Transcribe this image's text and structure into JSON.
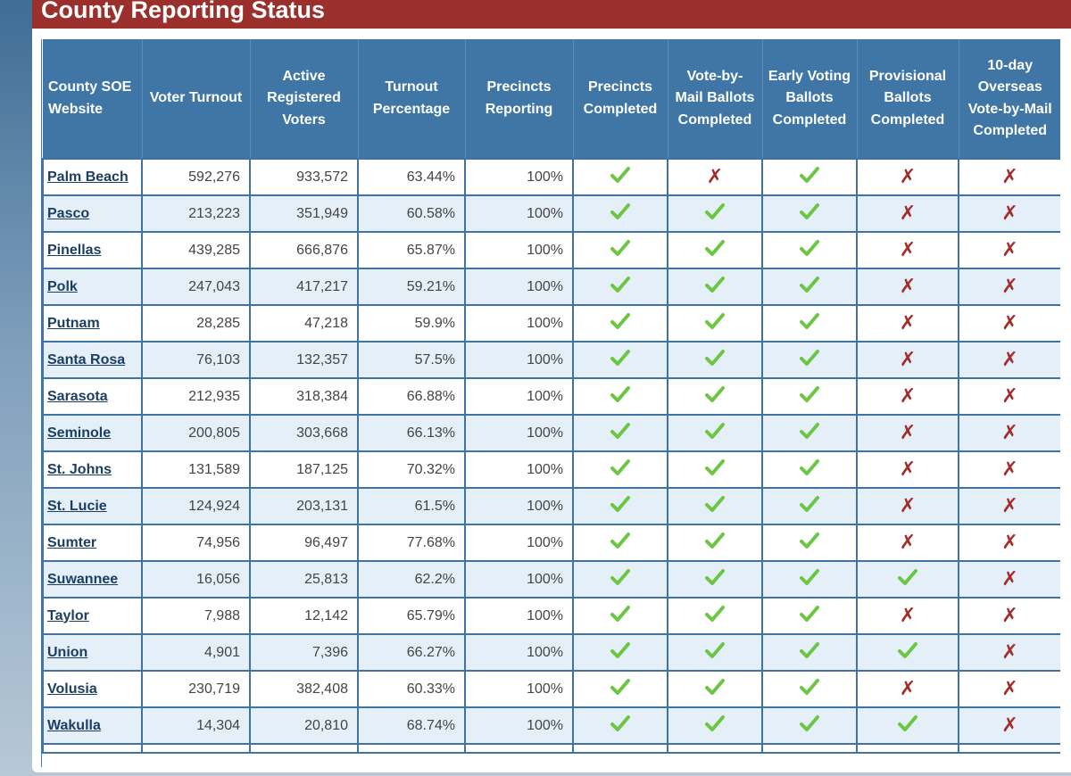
{
  "title": "County Reporting Status",
  "columns": [
    "County SOE Website",
    "Voter Turnout",
    "Active Registered Voters",
    "Turnout Percentage",
    "Precincts Reporting",
    "Precincts Completed",
    "Vote-by-Mail Ballots Completed",
    "Early Voting Ballots Completed",
    "Provisional Ballots Completed",
    "10-day Overseas Vote-by-Mail Completed"
  ],
  "colors": {
    "title_bar": "#9b2f2c",
    "header": "#3f76a6",
    "check": "#6cc644",
    "cross": "#a52a2a"
  },
  "rows": [
    {
      "county": "Palm Beach",
      "turnout": "592,276",
      "registered": "933,572",
      "pct": "63.44%",
      "reporting": "100%",
      "precincts_completed": true,
      "vbm": false,
      "early": true,
      "provisional": false,
      "overseas": false
    },
    {
      "county": "Pasco",
      "turnout": "213,223",
      "registered": "351,949",
      "pct": "60.58%",
      "reporting": "100%",
      "precincts_completed": true,
      "vbm": true,
      "early": true,
      "provisional": false,
      "overseas": false
    },
    {
      "county": "Pinellas",
      "turnout": "439,285",
      "registered": "666,876",
      "pct": "65.87%",
      "reporting": "100%",
      "precincts_completed": true,
      "vbm": true,
      "early": true,
      "provisional": false,
      "overseas": false
    },
    {
      "county": "Polk",
      "turnout": "247,043",
      "registered": "417,217",
      "pct": "59.21%",
      "reporting": "100%",
      "precincts_completed": true,
      "vbm": true,
      "early": true,
      "provisional": false,
      "overseas": false
    },
    {
      "county": "Putnam",
      "turnout": "28,285",
      "registered": "47,218",
      "pct": "59.9%",
      "reporting": "100%",
      "precincts_completed": true,
      "vbm": true,
      "early": true,
      "provisional": false,
      "overseas": false
    },
    {
      "county": "Santa Rosa",
      "turnout": "76,103",
      "registered": "132,357",
      "pct": "57.5%",
      "reporting": "100%",
      "precincts_completed": true,
      "vbm": true,
      "early": true,
      "provisional": false,
      "overseas": false
    },
    {
      "county": "Sarasota",
      "turnout": "212,935",
      "registered": "318,384",
      "pct": "66.88%",
      "reporting": "100%",
      "precincts_completed": true,
      "vbm": true,
      "early": true,
      "provisional": false,
      "overseas": false
    },
    {
      "county": "Seminole",
      "turnout": "200,805",
      "registered": "303,668",
      "pct": "66.13%",
      "reporting": "100%",
      "precincts_completed": true,
      "vbm": true,
      "early": true,
      "provisional": false,
      "overseas": false
    },
    {
      "county": "St. Johns",
      "turnout": "131,589",
      "registered": "187,125",
      "pct": "70.32%",
      "reporting": "100%",
      "precincts_completed": true,
      "vbm": true,
      "early": true,
      "provisional": false,
      "overseas": false
    },
    {
      "county": "St. Lucie",
      "turnout": "124,924",
      "registered": "203,131",
      "pct": "61.5%",
      "reporting": "100%",
      "precincts_completed": true,
      "vbm": true,
      "early": true,
      "provisional": false,
      "overseas": false
    },
    {
      "county": "Sumter",
      "turnout": "74,956",
      "registered": "96,497",
      "pct": "77.68%",
      "reporting": "100%",
      "precincts_completed": true,
      "vbm": true,
      "early": true,
      "provisional": false,
      "overseas": false
    },
    {
      "county": "Suwannee",
      "turnout": "16,056",
      "registered": "25,813",
      "pct": "62.2%",
      "reporting": "100%",
      "precincts_completed": true,
      "vbm": true,
      "early": true,
      "provisional": true,
      "overseas": false
    },
    {
      "county": "Taylor",
      "turnout": "7,988",
      "registered": "12,142",
      "pct": "65.79%",
      "reporting": "100%",
      "precincts_completed": true,
      "vbm": true,
      "early": true,
      "provisional": false,
      "overseas": false
    },
    {
      "county": "Union",
      "turnout": "4,901",
      "registered": "7,396",
      "pct": "66.27%",
      "reporting": "100%",
      "precincts_completed": true,
      "vbm": true,
      "early": true,
      "provisional": true,
      "overseas": false
    },
    {
      "county": "Volusia",
      "turnout": "230,719",
      "registered": "382,408",
      "pct": "60.33%",
      "reporting": "100%",
      "precincts_completed": true,
      "vbm": true,
      "early": true,
      "provisional": false,
      "overseas": false
    },
    {
      "county": "Wakulla",
      "turnout": "14,304",
      "registered": "20,810",
      "pct": "68.74%",
      "reporting": "100%",
      "precincts_completed": true,
      "vbm": true,
      "early": true,
      "provisional": true,
      "overseas": false
    }
  ]
}
